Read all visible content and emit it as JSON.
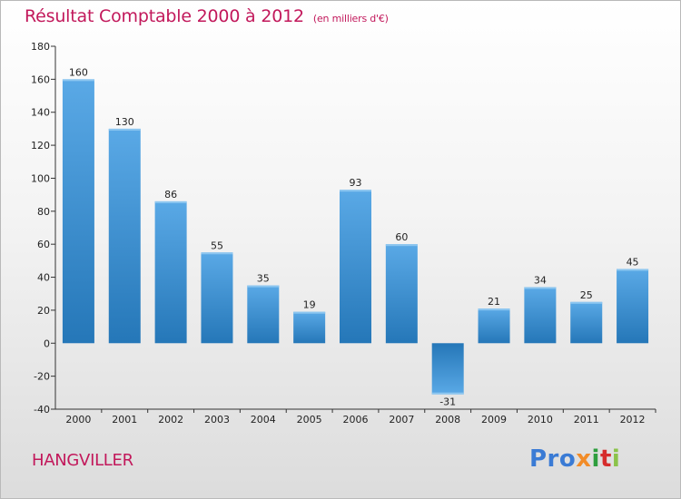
{
  "title": "Résultat Comptable 2000 à 2012",
  "subtitle": "(en milliers d'€)",
  "place": "HANGVILLER",
  "logo": {
    "p1": "Pro",
    "p2": "x",
    "p3": "i",
    "p4": "t",
    "p5": "i"
  },
  "colors": {
    "title": "#c2185b",
    "bar_top": "#5aa9e6",
    "bar_bottom": "#2577b8",
    "axis": "#333333"
  },
  "chart_data": {
    "type": "bar",
    "title": "Résultat Comptable 2000 à 2012",
    "subtitle": "(en milliers d'€)",
    "xlabel": "",
    "ylabel": "",
    "categories": [
      "2000",
      "2001",
      "2002",
      "2003",
      "2004",
      "2005",
      "2006",
      "2007",
      "2008",
      "2009",
      "2010",
      "2011",
      "2012"
    ],
    "values": [
      160,
      130,
      86,
      55,
      35,
      19,
      93,
      60,
      -31,
      21,
      34,
      25,
      45
    ],
    "ylim": [
      -40,
      180
    ],
    "yticks": [
      -40,
      -20,
      0,
      20,
      40,
      60,
      80,
      100,
      120,
      140,
      160,
      180
    ],
    "grid": false,
    "legend": "none"
  }
}
